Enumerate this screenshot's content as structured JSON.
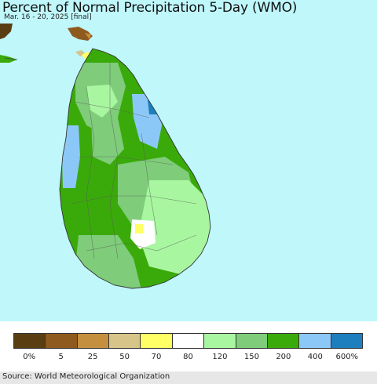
{
  "header": {
    "title": "Percent of Normal Precipitation 5-Day (WMO)",
    "subtitle": "Mar. 16 - 20, 2025 [final]"
  },
  "map": {
    "region": "Sri Lanka",
    "ocean_color": "#bff7fb",
    "category_colors": {
      "0-5": "#5a3e12",
      "5-25": "#8e5a1e",
      "25-50": "#c49040",
      "50-70": "#d6c489",
      "70-80": "#ffff66",
      "80-120": "#ffffff",
      "120-150": "#a8f7a0",
      "150-200": "#7fcc7a",
      "200-400": "#3aaa0a",
      "400-600": "#8cc8f7",
      "600+": "#1e7fbf"
    }
  },
  "legend": {
    "colors": [
      "#5a3e12",
      "#8e5a1e",
      "#c49040",
      "#d6c489",
      "#ffff66",
      "#ffffff",
      "#a8f7a0",
      "#7fcc7a",
      "#3aaa0a",
      "#8cc8f7",
      "#1e7fbf"
    ],
    "labels": [
      "0%",
      "5",
      "25",
      "50",
      "70",
      "80",
      "120",
      "150",
      "200",
      "400",
      "600%"
    ]
  },
  "footer": {
    "source": "Source: World Meteorological Organization"
  }
}
